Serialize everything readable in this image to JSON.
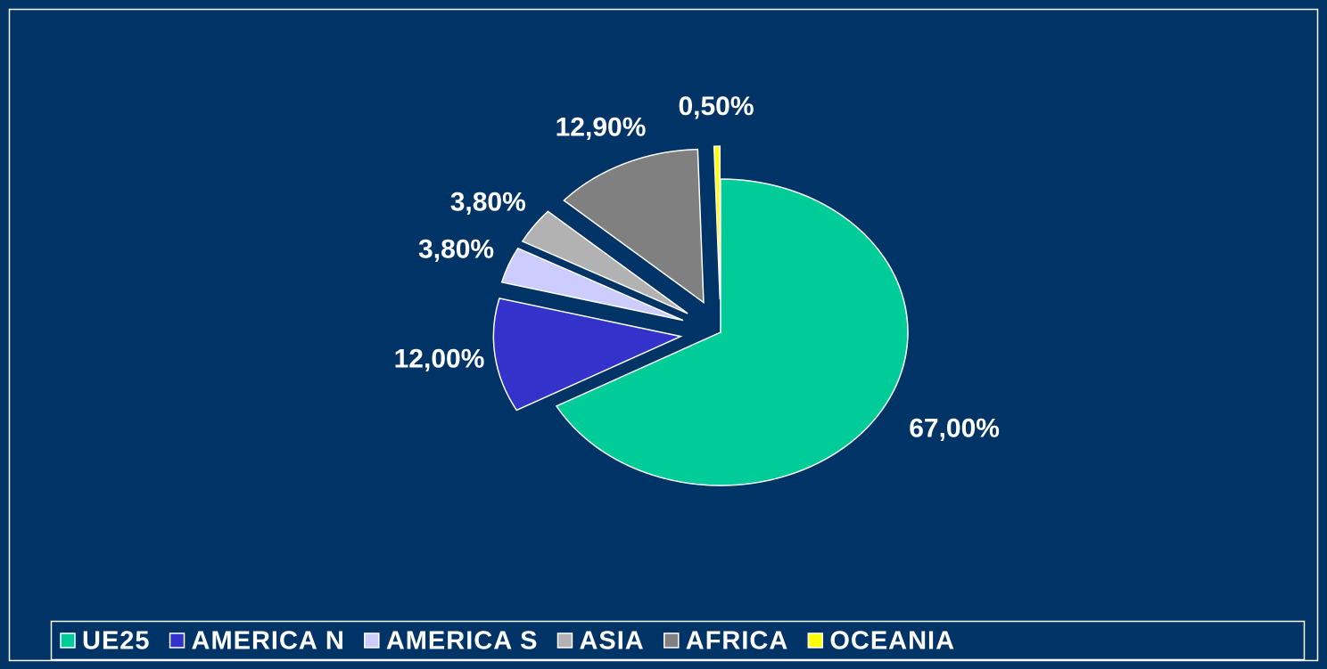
{
  "chart_data": {
    "type": "pie",
    "categories": [
      "UE25",
      "AMERICA N",
      "AMERICA S",
      "ASIA",
      "AFRICA",
      "OCEANIA"
    ],
    "values": [
      67,
      12,
      3.8,
      3.8,
      12.9,
      0.5
    ],
    "value_labels": [
      "67,00%",
      "12,00%",
      "3,80%",
      "3,80%",
      "12,90%",
      "0,50%"
    ],
    "colors": [
      "#00cc99",
      "#3333cc",
      "#ccccff",
      "#b2b2b2",
      "#808080",
      "#ffff00"
    ],
    "legend": "bottom"
  }
}
